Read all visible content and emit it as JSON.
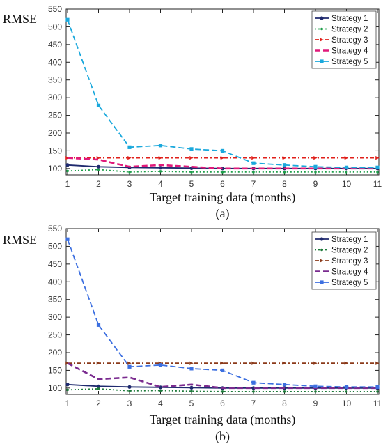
{
  "chart_data": [
    {
      "type": "line",
      "panel_label": "(a)",
      "ylabel": "RMSE",
      "xlabel": "Target training data (months)",
      "xlim": [
        1,
        11
      ],
      "ylim": [
        82,
        550
      ],
      "xticks": [
        1,
        2,
        3,
        4,
        5,
        6,
        7,
        8,
        9,
        10,
        11
      ],
      "yticks": [
        100,
        150,
        200,
        250,
        300,
        350,
        400,
        450,
        500,
        550
      ],
      "legend_position": "top-right",
      "x": [
        1,
        2,
        3,
        4,
        5,
        6,
        7,
        8,
        9,
        10,
        11
      ],
      "series": [
        {
          "name": "Strategy 1",
          "color": "#1f2a6e",
          "style": "solid",
          "marker": "circle",
          "values": [
            110,
            105,
            103,
            102,
            101,
            100,
            100,
            100,
            100,
            100,
            100
          ]
        },
        {
          "name": "Strategy 2",
          "color": "#1e9e4a",
          "style": "dotted",
          "marker": "dot",
          "values": [
            93,
            97,
            90,
            92,
            90,
            90,
            90,
            90,
            90,
            90,
            90
          ]
        },
        {
          "name": "Strategy 3",
          "color": "#e0201b",
          "style": "dashdot",
          "marker": "triangle",
          "values": [
            130,
            130,
            130,
            130,
            130,
            130,
            130,
            130,
            130,
            130,
            130
          ]
        },
        {
          "name": "Strategy 4",
          "color": "#e0197a",
          "style": "dashed",
          "marker": "none",
          "values": [
            130,
            125,
            105,
            110,
            105,
            100,
            100,
            100,
            100,
            100,
            100
          ]
        },
        {
          "name": "Strategy 5",
          "color": "#1aa8dc",
          "style": "dashed",
          "marker": "square",
          "values": [
            520,
            278,
            160,
            165,
            155,
            150,
            115,
            110,
            105,
            103,
            103
          ]
        }
      ]
    },
    {
      "type": "line",
      "panel_label": "(b)",
      "ylabel": "RMSE",
      "xlabel": "Target training data (months)",
      "xlim": [
        1,
        11
      ],
      "ylim": [
        82,
        550
      ],
      "xticks": [
        1,
        2,
        3,
        4,
        5,
        6,
        7,
        8,
        9,
        10,
        11
      ],
      "yticks": [
        100,
        150,
        200,
        250,
        300,
        350,
        400,
        450,
        500,
        550
      ],
      "legend_position": "top-right",
      "x": [
        1,
        2,
        3,
        4,
        5,
        6,
        7,
        8,
        9,
        10,
        11
      ],
      "series": [
        {
          "name": "Strategy 1",
          "color": "#1f2a6e",
          "style": "solid",
          "marker": "circle",
          "values": [
            110,
            105,
            103,
            102,
            101,
            100,
            100,
            100,
            100,
            100,
            100
          ]
        },
        {
          "name": "Strategy 2",
          "color": "#1d7a3a",
          "style": "dotted",
          "marker": "dot",
          "values": [
            95,
            98,
            92,
            93,
            91,
            90,
            90,
            90,
            90,
            90,
            90
          ]
        },
        {
          "name": "Strategy 3",
          "color": "#8b3a1a",
          "style": "dashdot",
          "marker": "triangle",
          "values": [
            170,
            170,
            170,
            170,
            170,
            170,
            170,
            170,
            170,
            170,
            170
          ]
        },
        {
          "name": "Strategy 4",
          "color": "#7a2b8f",
          "style": "dashed",
          "marker": "none",
          "values": [
            170,
            125,
            130,
            103,
            110,
            100,
            100,
            100,
            100,
            100,
            100
          ]
        },
        {
          "name": "Strategy 5",
          "color": "#3c6fe0",
          "style": "dashed",
          "marker": "square",
          "values": [
            520,
            278,
            160,
            165,
            155,
            150,
            115,
            110,
            105,
            103,
            103
          ]
        }
      ]
    }
  ]
}
